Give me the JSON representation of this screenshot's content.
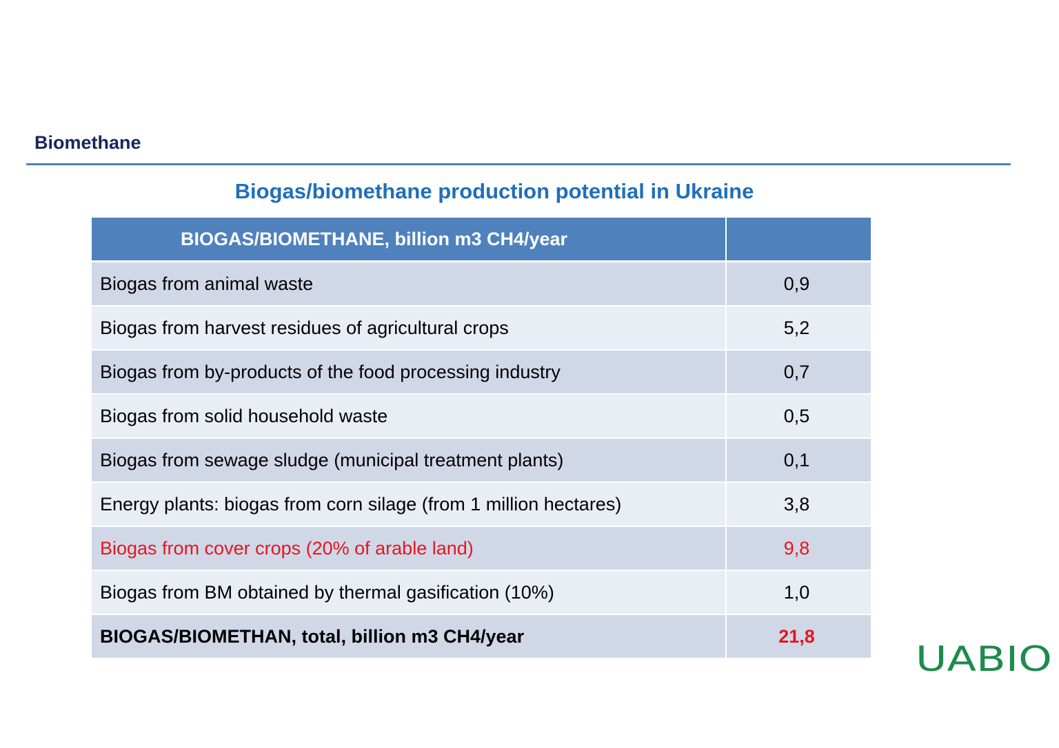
{
  "header": {
    "section_title": "Biomethane",
    "table_title": "Biogas/biomethane production potential in Ukraine"
  },
  "table": {
    "header_label": "BIOGAS/BIOMETHANE, billion m3 CH4/year",
    "header_value": "",
    "rows": [
      {
        "label": "Biogas from animal waste",
        "value": "0,9"
      },
      {
        "label": "Biogas from harvest residues of agricultural crops",
        "value": "5,2"
      },
      {
        "label": "Biogas from by-products of the food processing industry",
        "value": "0,7"
      },
      {
        "label": "Biogas from solid household waste",
        "value": "0,5"
      },
      {
        "label": "Biogas from sewage sludge (municipal treatment plants)",
        "value": "0,1"
      },
      {
        "label": "Energy plants: biogas from corn silage (from 1 million hectares)",
        "value": "3,8"
      },
      {
        "label": "Biogas from cover crops (20% of arable land)",
        "value": "9,8"
      },
      {
        "label": "Biogas from BM obtained by thermal gasification (10%)",
        "value": "1,0"
      }
    ],
    "total": {
      "label": "BIOGAS/BIOMETHAN, total, billion m3 CH4/year",
      "value": "21,8"
    }
  },
  "logo": {
    "text": "UABIO",
    "color": "#1e8a4c"
  },
  "colors": {
    "header_bg": "#4f81bd",
    "row_odd": "#d0d8e8",
    "row_even": "#e9edf4",
    "highlight": "#e8151b",
    "section_title": "#14295a",
    "table_title": "#1f6fba"
  }
}
